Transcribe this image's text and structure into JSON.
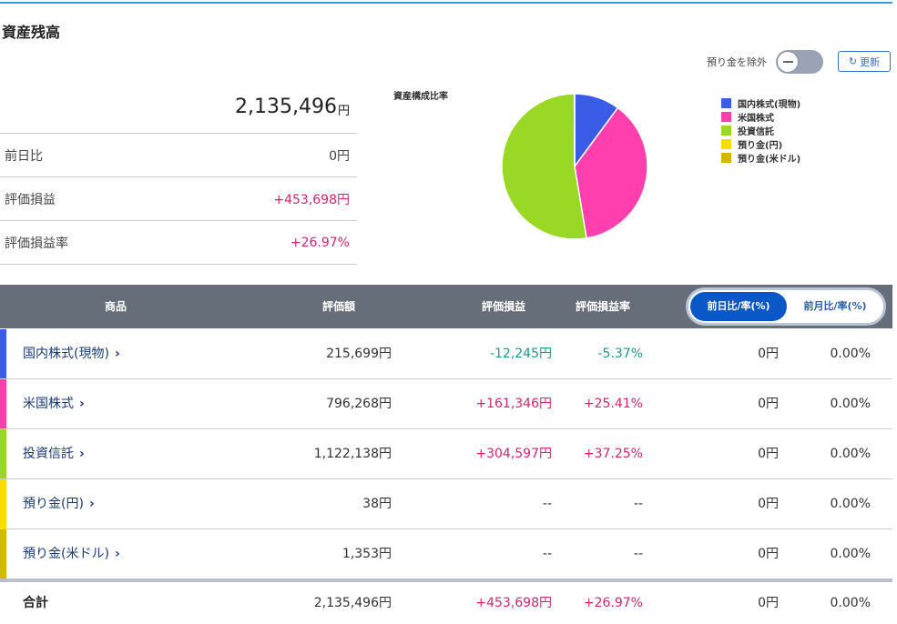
{
  "section_title": "資産残高",
  "exclude_label": "預り金を除外",
  "refresh_label": "更新",
  "summary": {
    "total_amount": "2,135,496",
    "total_unit": "円",
    "rows": [
      {
        "label": "前日比",
        "value": "0円"
      },
      {
        "label": "評価損益",
        "value": "+453,698円"
      },
      {
        "label": "評価損益率",
        "value": "+26.97%"
      }
    ]
  },
  "chart_data": {
    "type": "pie",
    "title": "資産構成比率",
    "categories": [
      "国内株式(現物)",
      "米国株式",
      "投資信託",
      "預り金(円)",
      "預り金(米ドル)"
    ],
    "values": [
      215699,
      796268,
      1122138,
      38,
      1353
    ],
    "colors": [
      "#3b5ce6",
      "#ff3fae",
      "#99d926",
      "#f7de00",
      "#d4b700"
    ]
  },
  "table": {
    "headers": {
      "name": "商品",
      "valuation": "評価額",
      "pl": "評価損益",
      "pl_rate": "評価損益率"
    },
    "toggle": {
      "active": "前日比/率(%)",
      "inactive": "前月比/率(%)"
    },
    "rows": [
      {
        "name": "国内株式(現物)",
        "chev": "›",
        "color": "#3b5ce6",
        "valuation": "215,699円",
        "pl": "-12,245円",
        "pl_rate": "-5.37%",
        "change": "0円",
        "change_rate": "0.00%",
        "sign": "neg"
      },
      {
        "name": "米国株式",
        "chev": "›",
        "color": "#ff3fae",
        "valuation": "796,268円",
        "pl": "+161,346円",
        "pl_rate": "+25.41%",
        "change": "0円",
        "change_rate": "0.00%",
        "sign": "pos"
      },
      {
        "name": "投資信託",
        "chev": "›",
        "color": "#99d926",
        "valuation": "1,122,138円",
        "pl": "+304,597円",
        "pl_rate": "+37.25%",
        "change": "0円",
        "change_rate": "0.00%",
        "sign": "pos"
      },
      {
        "name": "預り金(円)",
        "chev": "›",
        "color": "#f7de00",
        "valuation": "38円",
        "pl": "--",
        "pl_rate": "--",
        "change": "0円",
        "change_rate": "0.00%",
        "sign": "none"
      },
      {
        "name": "預り金(米ドル)",
        "chev": "›",
        "color": "#d4b700",
        "valuation": "1,353円",
        "pl": "--",
        "pl_rate": "--",
        "change": "0円",
        "change_rate": "0.00%",
        "sign": "none"
      }
    ],
    "total": {
      "label": "合計",
      "valuation": "2,135,496円",
      "pl": "+453,698円",
      "pl_rate": "+26.97%",
      "change": "0円",
      "change_rate": "0.00%"
    }
  }
}
